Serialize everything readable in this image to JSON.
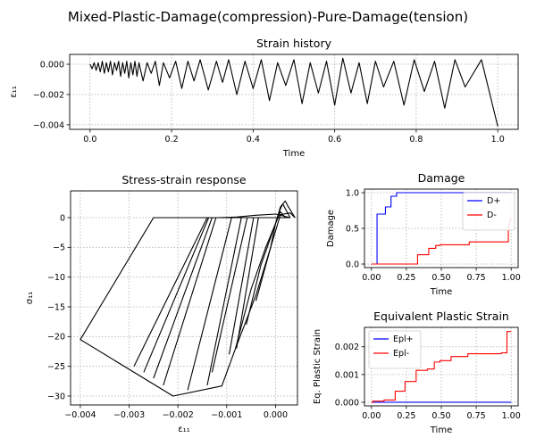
{
  "figure": {
    "suptitle": "Mixed-Plastic-Damage(compression)-Pure-Damage(tension)"
  },
  "colors": {
    "axes": "#000000",
    "grid": "#b0b0b0",
    "strain": "#000000",
    "stress": "#000000",
    "series_plus": "#0000ff",
    "series_minus": "#ff0000"
  },
  "chart_data": [
    {
      "id": "strain",
      "type": "line",
      "title": "Strain history",
      "xlabel": "Time",
      "ylabel": "ε₁₁",
      "xlim": [
        -0.05,
        1.05
      ],
      "ylim": [
        -0.0043,
        0.00065
      ],
      "xticks": [
        0.0,
        0.2,
        0.4,
        0.6,
        0.8,
        1.0
      ],
      "xtick_labels": [
        "0.0",
        "0.2",
        "0.4",
        "0.6",
        "0.8",
        "1.0"
      ],
      "yticks": [
        -0.004,
        -0.002,
        0.0
      ],
      "ytick_labels": [
        "−0.004",
        "−0.002",
        "0.000"
      ],
      "grid": true,
      "series": [
        {
          "x": [
            0.0,
            0.005,
            0.01,
            0.015,
            0.02,
            0.025,
            0.03,
            0.035,
            0.04,
            0.045,
            0.05,
            0.055,
            0.06,
            0.065,
            0.07,
            0.075,
            0.08,
            0.085,
            0.09,
            0.095,
            0.1,
            0.105,
            0.11,
            0.115,
            0.12,
            0.13,
            0.14,
            0.15,
            0.16,
            0.17,
            0.18,
            0.195,
            0.21,
            0.225,
            0.24,
            0.255,
            0.27,
            0.29,
            0.31,
            0.325,
            0.34,
            0.36,
            0.38,
            0.4,
            0.42,
            0.44,
            0.46,
            0.48,
            0.5,
            0.52,
            0.54,
            0.56,
            0.58,
            0.6,
            0.62,
            0.64,
            0.66,
            0.68,
            0.7,
            0.72,
            0.745,
            0.77,
            0.795,
            0.82,
            0.845,
            0.87,
            0.895,
            0.92,
            0.96,
            1.0
          ],
          "y": [
            0.0,
            -0.0003,
            0.0001,
            -0.0004,
            0.0001,
            -0.0005,
            0.0002,
            -0.0006,
            0.0001,
            -0.0005,
            0.0002,
            -0.0007,
            0.0001,
            -0.0004,
            0.0002,
            -0.0008,
            0.0001,
            -0.0006,
            0.0002,
            -0.0009,
            0.0001,
            -0.0007,
            0.0002,
            -0.0008,
            0.0001,
            -0.0011,
            0.0001,
            -0.0006,
            0.0002,
            -0.0014,
            0.0001,
            -0.0009,
            0.0002,
            -0.0016,
            0.0002,
            -0.0011,
            0.0003,
            -0.0017,
            0.0002,
            -0.0012,
            0.0003,
            -0.002,
            0.0002,
            -0.0016,
            0.0003,
            -0.0024,
            0.0001,
            -0.0014,
            0.0003,
            -0.0026,
            0.0001,
            -0.0019,
            0.0002,
            -0.0027,
            0.0004,
            -0.0019,
            0.0001,
            -0.0026,
            0.0002,
            -0.0015,
            0.0002,
            -0.0027,
            0.0003,
            -0.0018,
            0.0002,
            -0.0029,
            0.0003,
            -0.0015,
            0.0003,
            -0.0041
          ]
        }
      ]
    },
    {
      "id": "stress",
      "type": "line",
      "title": "Stress-strain response",
      "xlabel": "ε₁₁",
      "ylabel": "σ₁₁",
      "xlim": [
        -0.0042,
        0.00045
      ],
      "ylim": [
        -31.5,
        4.5
      ],
      "xticks": [
        -0.004,
        -0.003,
        -0.002,
        -0.001,
        0.0
      ],
      "xtick_labels": [
        "−0.004",
        "−0.003",
        "−0.002",
        "−0.001",
        "0.000"
      ],
      "yticks": [
        -30,
        -25,
        -20,
        -15,
        -10,
        -5,
        0
      ],
      "ytick_labels": [
        "−30",
        "−25",
        "−20",
        "−15",
        "−10",
        "−5",
        "0"
      ],
      "grid": true,
      "series": [
        {
          "x": [
            0.0003,
            -0.0025,
            -0.004,
            -0.0021,
            -0.0011,
            -0.00082,
            -0.0004,
            -0.0001,
            0.0001,
            0.0003,
            0.0004
          ],
          "y": [
            0.0,
            0.0,
            -20.5,
            -30.0,
            -28.3,
            -22.0,
            -13.0,
            -5.0,
            0.5,
            0.8,
            0.0
          ]
        },
        {
          "x": [
            -0.0029,
            -0.0014
          ],
          "y": [
            -25.0,
            0.0
          ]
        },
        {
          "x": [
            -0.0027,
            -0.00137
          ],
          "y": [
            -26.0,
            0.0
          ]
        },
        {
          "x": [
            -0.0025,
            -0.0013
          ],
          "y": [
            -27.0,
            0.0
          ]
        },
        {
          "x": [
            -0.0023,
            -0.00122
          ],
          "y": [
            -28.2,
            0.0
          ]
        },
        {
          "x": [
            -0.0018,
            -0.0009
          ],
          "y": [
            -29.0,
            0.0
          ]
        },
        {
          "x": [
            -0.0014,
            -0.0007
          ],
          "y": [
            -28.2,
            0.0
          ]
        },
        {
          "x": [
            -0.0013,
            -0.00058
          ],
          "y": [
            -26.0,
            0.0
          ]
        },
        {
          "x": [
            -0.00095,
            -0.00045
          ],
          "y": [
            -23.0,
            0.0
          ]
        },
        {
          "x": [
            -0.0008,
            -0.00035
          ],
          "y": [
            -22.0,
            0.0
          ]
        },
        {
          "x": [
            -0.00082,
            -0.0005,
            -0.0002,
            0.0,
            0.0001,
            0.0002,
            0.00025,
            0.0004
          ],
          "y": [
            -22.0,
            -12.0,
            -5.0,
            -1.0,
            1.8,
            2.8,
            2.0,
            0.0
          ]
        },
        {
          "x": [
            -0.0006,
            -0.0003,
            0.0,
            0.0001,
            0.00015,
            0.0002,
            0.0003
          ],
          "y": [
            -18.0,
            -8.0,
            -1.0,
            1.5,
            2.3,
            1.5,
            0.0
          ]
        },
        {
          "x": [
            -0.0004,
            -0.0001,
            0.0,
            0.0001,
            0.0002
          ],
          "y": [
            -14.0,
            -5.0,
            -1.0,
            1.0,
            0.0
          ]
        },
        {
          "x": [
            -0.0012,
            -0.0008,
            -0.0004,
            0.0,
            0.0003
          ],
          "y": [
            0.0,
            0.1,
            0.4,
            0.6,
            0.0
          ]
        }
      ]
    },
    {
      "id": "damage",
      "type": "line",
      "title": "Damage",
      "xlabel": "Time",
      "ylabel": "Damage",
      "xlim": [
        -0.05,
        1.05
      ],
      "ylim": [
        -0.05,
        1.05
      ],
      "xticks": [
        0.0,
        0.25,
        0.5,
        0.75,
        1.0
      ],
      "xtick_labels": [
        "0.00",
        "0.25",
        "0.50",
        "0.75",
        "1.00"
      ],
      "yticks": [
        0.0,
        0.5,
        1.0
      ],
      "ytick_labels": [
        "0.0",
        "0.5",
        "1.0"
      ],
      "grid": true,
      "legend": "upper-right",
      "series": [
        {
          "name": "D+",
          "x": [
            0.0,
            0.04,
            0.04,
            0.1,
            0.1,
            0.14,
            0.14,
            0.18,
            0.18,
            1.0
          ],
          "y": [
            0.0,
            0.0,
            0.7,
            0.7,
            0.8,
            0.8,
            0.95,
            0.95,
            1.0,
            1.0
          ]
        },
        {
          "name": "D-",
          "x": [
            0.0,
            0.33,
            0.33,
            0.41,
            0.41,
            0.46,
            0.46,
            0.49,
            0.49,
            0.7,
            0.7,
            0.98,
            0.98,
            1.0
          ],
          "y": [
            0.0,
            0.0,
            0.13,
            0.13,
            0.22,
            0.22,
            0.26,
            0.26,
            0.27,
            0.27,
            0.31,
            0.31,
            0.52,
            0.65
          ]
        }
      ]
    },
    {
      "id": "epl",
      "type": "line",
      "title": "Equivalent Plastic Strain",
      "xlabel": "Time",
      "ylabel": "Eq. Plastic Strain",
      "xlim": [
        -0.05,
        1.05
      ],
      "ylim": [
        -0.00013,
        0.0027
      ],
      "xticks": [
        0.0,
        0.25,
        0.5,
        0.75,
        1.0
      ],
      "xtick_labels": [
        "0.00",
        "0.25",
        "0.50",
        "0.75",
        "1.00"
      ],
      "yticks": [
        0.0,
        0.001,
        0.002
      ],
      "ytick_labels": [
        "0.000",
        "0.001",
        "0.002"
      ],
      "grid": true,
      "legend": "upper-left",
      "series": [
        {
          "name": "Epl+",
          "x": [
            0.0,
            1.0
          ],
          "y": [
            0.0,
            0.0
          ]
        },
        {
          "name": "Epl-",
          "x": [
            0.0,
            0.01,
            0.01,
            0.09,
            0.09,
            0.17,
            0.17,
            0.24,
            0.24,
            0.32,
            0.32,
            0.4,
            0.4,
            0.45,
            0.45,
            0.49,
            0.49,
            0.57,
            0.57,
            0.69,
            0.69,
            0.93,
            0.93,
            0.97,
            0.97,
            1.0
          ],
          "y": [
            0.0,
            0.0,
            4e-05,
            4e-05,
            8e-05,
            8e-05,
            0.0004,
            0.0004,
            0.00075,
            0.00075,
            0.00115,
            0.00115,
            0.0012,
            0.0012,
            0.00145,
            0.00145,
            0.0015,
            0.0015,
            0.00165,
            0.00165,
            0.00175,
            0.00175,
            0.00178,
            0.00178,
            0.00255,
            0.00255
          ]
        }
      ]
    }
  ]
}
